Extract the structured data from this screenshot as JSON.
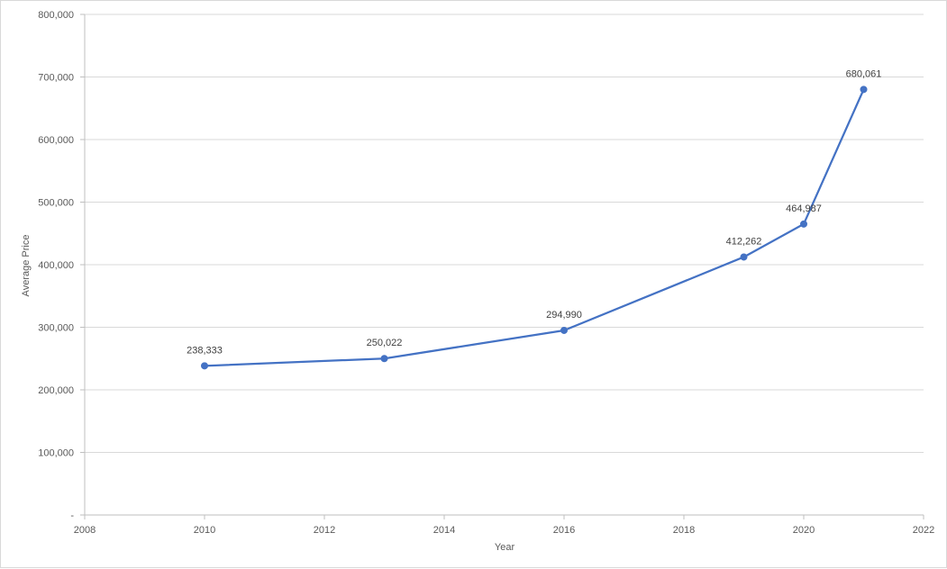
{
  "chart_data": {
    "type": "scatter",
    "title": "",
    "xlabel": "Year",
    "ylabel": "Average Price",
    "xlim": [
      2008,
      2022
    ],
    "ylim": [
      0,
      800000
    ],
    "x_ticks": [
      2008,
      2010,
      2012,
      2014,
      2016,
      2018,
      2020,
      2022
    ],
    "x_tick_labels": [
      "2008",
      "2010",
      "2012",
      "2014",
      "2016",
      "2018",
      "2020",
      "2022"
    ],
    "y_ticks": [
      0,
      100000,
      200000,
      300000,
      400000,
      500000,
      600000,
      700000,
      800000
    ],
    "y_tick_labels": [
      "-",
      "100,000",
      "200,000",
      "300,000",
      "400,000",
      "500,000",
      "600,000",
      "700,000",
      "800,000"
    ],
    "grid": "horizontal",
    "legend": "none",
    "series": [
      {
        "color": "#4472c4",
        "lines": true,
        "markers": true,
        "x": [
          2010,
          2013,
          2016,
          2019,
          2020,
          2021
        ],
        "y": [
          238333,
          250022,
          294990,
          412262,
          464987,
          680061
        ],
        "data_labels": [
          "238,333",
          "250,022",
          "294,990",
          "412,262",
          "464,987",
          "680,061"
        ]
      }
    ],
    "colors": {
      "grid": "#d9d9d9",
      "axis": "#bfbfbf",
      "text": "#595959",
      "label": "#404040"
    }
  }
}
